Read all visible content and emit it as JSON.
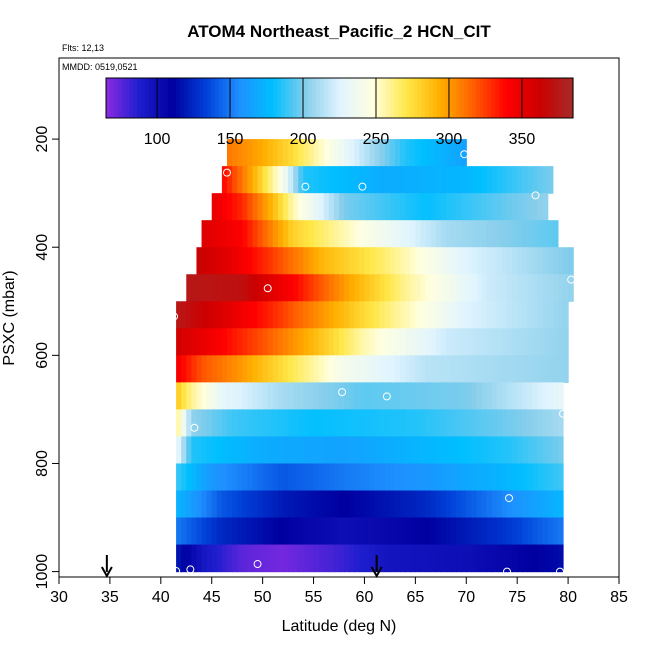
{
  "header": {
    "title": "ATOM4 Northeast_Pacific_2 HCN_CIT",
    "flights": "Flts: 12,13",
    "dates": "MMDD: 0519,0521"
  },
  "colors": {
    "scale": [
      "#8B2BE2",
      "#1E1ECF",
      "#0000A0",
      "#0040D8",
      "#1E90FF",
      "#00BFFF",
      "#87CEEB",
      "#E0F4FF",
      "#FFFFE0",
      "#FFE84A",
      "#FFB000",
      "#FF6000",
      "#FF0000",
      "#CC0000",
      "#A52A2A"
    ],
    "marker": "#FFFFFF"
  },
  "chart_data": {
    "type": "heatmap",
    "xlabel": "Latitude (deg N)",
    "ylabel": "PSXC (mbar)",
    "xlim": [
      30,
      85
    ],
    "ylim": [
      1010,
      50
    ],
    "x_ticks": [
      "30",
      "35",
      "40",
      "45",
      "50",
      "55",
      "60",
      "65",
      "70",
      "75",
      "80",
      "85"
    ],
    "x_tick_values": [
      30,
      35,
      40,
      45,
      50,
      55,
      60,
      65,
      70,
      75,
      80,
      85
    ],
    "y_ticks": [
      "200",
      "400",
      "600",
      "800",
      "1000"
    ],
    "y_tick_values": [
      200,
      400,
      600,
      800,
      1000
    ],
    "colorbar": {
      "range": [
        65,
        385
      ],
      "ticks": [
        "100",
        "150",
        "200",
        "250",
        "300",
        "350"
      ],
      "tick_values": [
        100,
        150,
        200,
        250,
        300,
        350
      ]
    },
    "rows": [
      {
        "p0": 200,
        "p1": 250,
        "lat0": 46.5,
        "lat1": 70,
        "knots": [
          [
            46.5,
            310
          ],
          [
            50,
            295
          ],
          [
            53,
            275
          ],
          [
            56,
            250
          ],
          [
            60,
            215
          ],
          [
            64,
            185
          ],
          [
            70,
            165
          ]
        ]
      },
      {
        "p0": 250,
        "p1": 300,
        "lat0": 46,
        "lat1": 78.5,
        "knots": [
          [
            46,
            340
          ],
          [
            49,
            295
          ],
          [
            52,
            240
          ],
          [
            54,
            185
          ],
          [
            62,
            170
          ],
          [
            70,
            175
          ],
          [
            78.5,
            200
          ]
        ]
      },
      {
        "p0": 300,
        "p1": 350,
        "lat0": 45,
        "lat1": 78,
        "knots": [
          [
            45,
            350
          ],
          [
            48,
            330
          ],
          [
            51,
            290
          ],
          [
            53,
            255
          ],
          [
            58,
            200
          ],
          [
            66,
            180
          ],
          [
            78,
            205
          ]
        ]
      },
      {
        "p0": 350,
        "p1": 400,
        "lat0": 44,
        "lat1": 79,
        "knots": [
          [
            44,
            355
          ],
          [
            48,
            340
          ],
          [
            51,
            305
          ],
          [
            53,
            280
          ],
          [
            60,
            245
          ],
          [
            68,
            210
          ],
          [
            79,
            195
          ]
        ]
      },
      {
        "p0": 400,
        "p1": 450,
        "lat0": 43.5,
        "lat1": 80.5,
        "knots": [
          [
            43.5,
            365
          ],
          [
            47,
            350
          ],
          [
            51,
            325
          ],
          [
            56,
            290
          ],
          [
            62,
            265
          ],
          [
            70,
            225
          ],
          [
            80.5,
            200
          ]
        ]
      },
      {
        "p0": 450,
        "p1": 500,
        "lat0": 42.5,
        "lat1": 80.5,
        "knots": [
          [
            42.5,
            375
          ],
          [
            48,
            370
          ],
          [
            53,
            340
          ],
          [
            58,
            300
          ],
          [
            64,
            260
          ],
          [
            72,
            220
          ],
          [
            80.5,
            205
          ]
        ]
      },
      {
        "p0": 500,
        "p1": 550,
        "lat0": 41.5,
        "lat1": 80,
        "knots": [
          [
            41.5,
            375
          ],
          [
            46,
            355
          ],
          [
            51,
            330
          ],
          [
            56,
            300
          ],
          [
            62,
            265
          ],
          [
            70,
            225
          ],
          [
            80,
            205
          ]
        ]
      },
      {
        "p0": 550,
        "p1": 600,
        "lat0": 41.5,
        "lat1": 80,
        "knots": [
          [
            41.5,
            360
          ],
          [
            45,
            345
          ],
          [
            50,
            320
          ],
          [
            55,
            290
          ],
          [
            60,
            255
          ],
          [
            68,
            220
          ],
          [
            80,
            205
          ]
        ]
      },
      {
        "p0": 600,
        "p1": 650,
        "lat0": 41.5,
        "lat1": 80,
        "knots": [
          [
            41.5,
            345
          ],
          [
            44,
            320
          ],
          [
            48,
            300
          ],
          [
            52,
            275
          ],
          [
            58,
            240
          ],
          [
            66,
            215
          ],
          [
            80,
            205
          ]
        ]
      },
      {
        "p0": 650,
        "p1": 700,
        "lat0": 41.5,
        "lat1": 79.5,
        "knots": [
          [
            41.5,
            285
          ],
          [
            43,
            260
          ],
          [
            46,
            230
          ],
          [
            52,
            210
          ],
          [
            60,
            195
          ],
          [
            70,
            200
          ],
          [
            79.5,
            230
          ]
        ]
      },
      {
        "p0": 700,
        "p1": 750,
        "lat0": 41.5,
        "lat1": 79.5,
        "knots": [
          [
            41.5,
            265
          ],
          [
            43,
            205
          ],
          [
            47,
            190
          ],
          [
            55,
            180
          ],
          [
            65,
            185
          ],
          [
            75,
            200
          ],
          [
            79.5,
            210
          ]
        ]
      },
      {
        "p0": 750,
        "p1": 800,
        "lat0": 41.5,
        "lat1": 79.5,
        "knots": [
          [
            41.5,
            235
          ],
          [
            43,
            185
          ],
          [
            50,
            170
          ],
          [
            58,
            165
          ],
          [
            66,
            175
          ],
          [
            74,
            185
          ],
          [
            79.5,
            200
          ]
        ]
      },
      {
        "p0": 800,
        "p1": 850,
        "lat0": 41.5,
        "lat1": 79.5,
        "knots": [
          [
            41.5,
            190
          ],
          [
            45,
            160
          ],
          [
            52,
            140
          ],
          [
            58,
            150
          ],
          [
            66,
            160
          ],
          [
            74,
            175
          ],
          [
            79.5,
            190
          ]
        ]
      },
      {
        "p0": 850,
        "p1": 900,
        "lat0": 41.5,
        "lat1": 79.5,
        "knots": [
          [
            41.5,
            175
          ],
          [
            46,
            140
          ],
          [
            52,
            120
          ],
          [
            58,
            110
          ],
          [
            66,
            125
          ],
          [
            74,
            155
          ],
          [
            79.5,
            175
          ]
        ]
      },
      {
        "p0": 900,
        "p1": 950,
        "lat0": 41.5,
        "lat1": 79.5,
        "knots": [
          [
            41.5,
            150
          ],
          [
            46,
            125
          ],
          [
            52,
            110
          ],
          [
            58,
            100
          ],
          [
            66,
            110
          ],
          [
            74,
            130
          ],
          [
            79.5,
            150
          ]
        ]
      },
      {
        "p0": 950,
        "p1": 1000,
        "lat0": 41.5,
        "lat1": 79.5,
        "knots": [
          [
            41.5,
            120
          ],
          [
            44,
            95
          ],
          [
            48,
            75
          ],
          [
            52,
            70
          ],
          [
            57,
            80
          ],
          [
            62,
            95
          ],
          [
            70,
            100
          ],
          [
            79.5,
            115
          ]
        ]
      }
    ],
    "points": [
      [
        46.5,
        262
      ],
      [
        54.2,
        288
      ],
      [
        59.8,
        288
      ],
      [
        69.8,
        228
      ],
      [
        76.8,
        304
      ],
      [
        80.3,
        460
      ],
      [
        50.5,
        476
      ],
      [
        41.3,
        528
      ],
      [
        57.8,
        668
      ],
      [
        62.2,
        676
      ],
      [
        43.3,
        734
      ],
      [
        79.5,
        708
      ],
      [
        74.2,
        864
      ],
      [
        49.5,
        986
      ],
      [
        41.5,
        999
      ],
      [
        42.9,
        996
      ],
      [
        74,
        1000
      ],
      [
        79.2,
        1000
      ]
    ],
    "arrows": [
      34.7,
      61.2
    ]
  }
}
